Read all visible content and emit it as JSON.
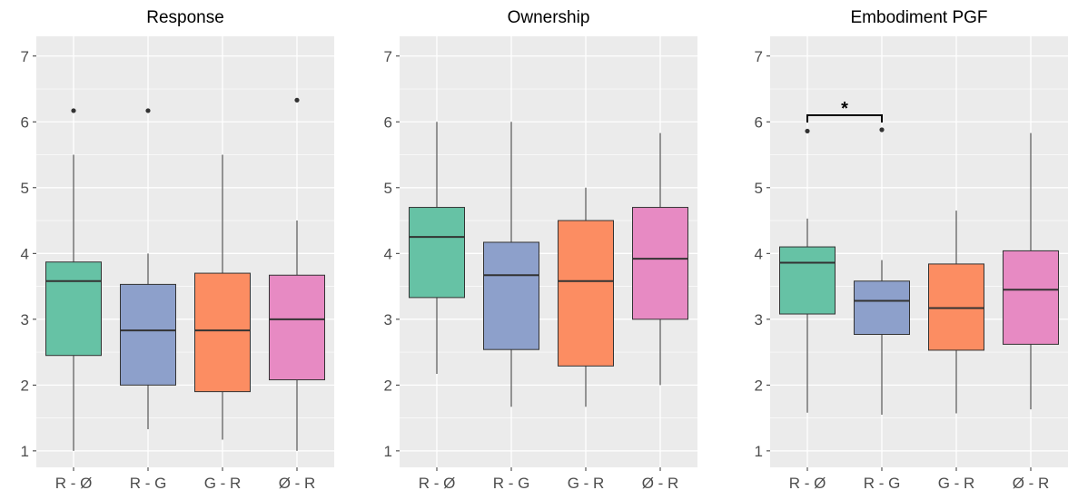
{
  "chart_data": [
    {
      "type": "box",
      "title": "Response",
      "ylim": [
        0.75,
        7.3
      ],
      "yticks": [
        "1",
        "2",
        "3",
        "4",
        "5",
        "6",
        "7"
      ],
      "categories": [
        "R - Ø",
        "R - G",
        "G - R",
        "Ø - R"
      ],
      "boxes": [
        {
          "category": "R - Ø",
          "whisker_low": 1.0,
          "q1": 2.45,
          "median": 3.58,
          "q3": 3.87,
          "whisker_high": 5.5,
          "outliers": [
            6.17
          ],
          "color": "#66c2a5"
        },
        {
          "category": "R - G",
          "whisker_low": 1.33,
          "q1": 2.0,
          "median": 2.83,
          "q3": 3.53,
          "whisker_high": 4.0,
          "outliers": [
            6.17
          ],
          "color": "#8da0cb"
        },
        {
          "category": "G - R",
          "whisker_low": 1.17,
          "q1": 1.9,
          "median": 2.83,
          "q3": 3.7,
          "whisker_high": 5.5,
          "outliers": [],
          "color": "#fc8d62"
        },
        {
          "category": "Ø - R",
          "whisker_low": 1.0,
          "q1": 2.08,
          "median": 3.0,
          "q3": 3.67,
          "whisker_high": 4.5,
          "outliers": [
            6.33
          ],
          "color": "#e78ac3"
        }
      ],
      "annotations": []
    },
    {
      "type": "box",
      "title": "Ownership",
      "ylim": [
        0.75,
        7.3
      ],
      "yticks": [
        "1",
        "2",
        "3",
        "4",
        "5",
        "6",
        "7"
      ],
      "categories": [
        "R - Ø",
        "R - G",
        "G - R",
        "Ø - R"
      ],
      "boxes": [
        {
          "category": "R - Ø",
          "whisker_low": 2.17,
          "q1": 3.33,
          "median": 4.25,
          "q3": 4.7,
          "whisker_high": 6.0,
          "outliers": [],
          "color": "#66c2a5"
        },
        {
          "category": "R - G",
          "whisker_low": 1.67,
          "q1": 2.54,
          "median": 3.67,
          "q3": 4.17,
          "whisker_high": 6.0,
          "outliers": [],
          "color": "#8da0cb"
        },
        {
          "category": "G - R",
          "whisker_low": 1.67,
          "q1": 2.29,
          "median": 3.58,
          "q3": 4.5,
          "whisker_high": 5.0,
          "outliers": [],
          "color": "#fc8d62"
        },
        {
          "category": "Ø - R",
          "whisker_low": 2.0,
          "q1": 3.0,
          "median": 3.92,
          "q3": 4.7,
          "whisker_high": 5.83,
          "outliers": [],
          "color": "#e78ac3"
        }
      ],
      "annotations": []
    },
    {
      "type": "box",
      "title": "Embodiment PGF",
      "ylim": [
        0.75,
        7.3
      ],
      "yticks": [
        "1",
        "2",
        "3",
        "4",
        "5",
        "6",
        "7"
      ],
      "categories": [
        "R - Ø",
        "R - G",
        "G - R",
        "Ø - R"
      ],
      "boxes": [
        {
          "category": "R - Ø",
          "whisker_low": 1.58,
          "q1": 3.08,
          "median": 3.86,
          "q3": 4.1,
          "whisker_high": 4.53,
          "outliers": [
            5.86
          ],
          "color": "#66c2a5"
        },
        {
          "category": "R - G",
          "whisker_low": 1.55,
          "q1": 2.77,
          "median": 3.28,
          "q3": 3.58,
          "whisker_high": 3.9,
          "outliers": [
            5.88
          ],
          "color": "#8da0cb"
        },
        {
          "category": "G - R",
          "whisker_low": 1.57,
          "q1": 2.53,
          "median": 3.17,
          "q3": 3.84,
          "whisker_high": 4.65,
          "outliers": [],
          "color": "#fc8d62"
        },
        {
          "category": "Ø - R",
          "whisker_low": 1.63,
          "q1": 2.62,
          "median": 3.45,
          "q3": 4.04,
          "whisker_high": 5.83,
          "outliers": [],
          "color": "#e78ac3"
        }
      ],
      "annotations": [
        {
          "label": "*",
          "from": "R - Ø",
          "to": "R - G",
          "y": 6.1
        }
      ]
    }
  ]
}
